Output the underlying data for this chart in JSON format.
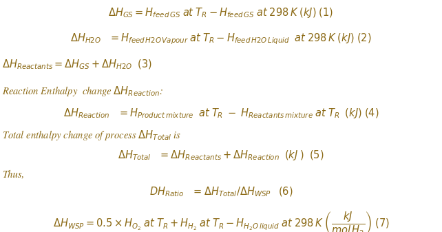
{
  "text_color": "#8B6914",
  "bg_color": "#ffffff",
  "fontsize": 10.5
}
